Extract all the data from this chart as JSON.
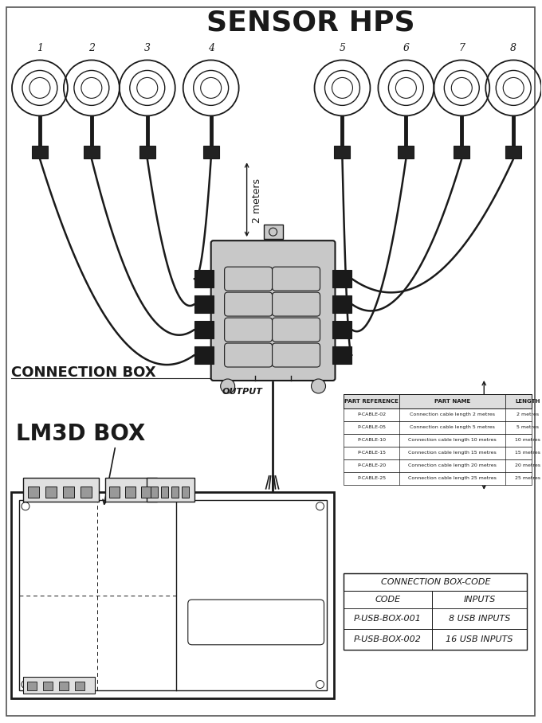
{
  "bg_color": "#ffffff",
  "line_color": "#1a1a1a",
  "box_gray": "#c8c8c8",
  "title": "SENSOR HPS",
  "sensor_numbers": [
    "1",
    "2",
    "3",
    "4",
    "5",
    "6",
    "7",
    "8"
  ],
  "conn_box_label": "CONNECTION BOX",
  "lm3d_label": "LM3D BOX",
  "output_label": "OUTPUT",
  "length_label": "Length",
  "two_meters_label": "2 meters",
  "table1_headers": [
    "PART REFERENCE",
    "PART NAME",
    "LENGTH"
  ],
  "table1_rows": [
    [
      "P-CABLE-02",
      "Connection cable length 2 metres",
      "2 metres"
    ],
    [
      "P-CABLE-05",
      "Connection cable length 5 metres",
      "5 metres"
    ],
    [
      "P-CABLE-10",
      "Connection cable length 10 metres",
      "10 metres"
    ],
    [
      "P-CABLE-15",
      "Connection cable length 15 metres",
      "15 metres"
    ],
    [
      "P-CABLE-20",
      "Connection cable length 20 metres",
      "20 metres"
    ],
    [
      "P-CABLE-25",
      "Connection cable length 25 metres",
      "25 metres"
    ]
  ],
  "table2_header": "CONNECTION BOX-CODE",
  "table2_col_headers": [
    "CODE",
    "INPUTS"
  ],
  "table2_rows": [
    [
      "P-USB-BOX-001",
      "8 USB INPUTS"
    ],
    [
      "P-USB-BOX-002",
      "16 USB INPUTS"
    ]
  ]
}
